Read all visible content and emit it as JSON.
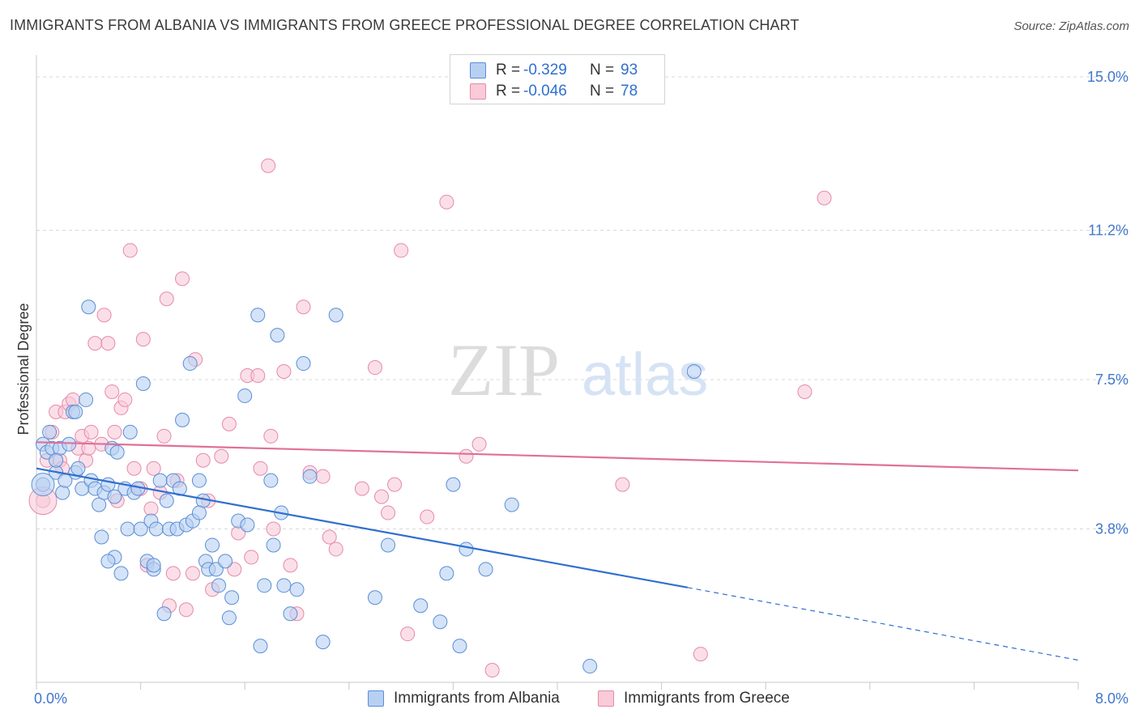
{
  "header": {
    "title": "IMMIGRANTS FROM ALBANIA VS IMMIGRANTS FROM GREECE PROFESSIONAL DEGREE CORRELATION CHART",
    "source": "Source: ZipAtlas.com"
  },
  "watermark": {
    "zip": "ZIP",
    "atlas": "atlas"
  },
  "legend": {
    "albania": {
      "r_label": "R =",
      "r_value": "-0.329",
      "n_label": "N =",
      "n_value": "93"
    },
    "greece": {
      "r_label": "R =",
      "r_value": "-0.046",
      "n_label": "N =",
      "n_value": "78"
    }
  },
  "colors": {
    "albania_fill": "#b7d0f2",
    "albania_stroke": "#5b8ed6",
    "albania_line": "#2f6fd0",
    "greece_fill": "#f9cad8",
    "greece_stroke": "#e68aa7",
    "greece_line": "#e0709a",
    "grid": "#d9d9d9",
    "axis_text": "#3f77cc"
  },
  "chart_data": {
    "type": "scatter",
    "title": "IMMIGRANTS FROM ALBANIA VS IMMIGRANTS FROM GREECE PROFESSIONAL DEGREE CORRELATION CHART",
    "xlabel": "",
    "ylabel": "Professional Degree",
    "xlim": [
      0,
      8.0
    ],
    "ylim": [
      0,
      15.0
    ],
    "x_tick_labels": [
      "0.0%",
      "8.0%"
    ],
    "y_ticks": [
      3.8,
      7.5,
      11.2,
      15.0
    ],
    "y_tick_labels": [
      "3.8%",
      "7.5%",
      "11.2%",
      "15.0%"
    ],
    "grid": true,
    "legend_position": "top-center",
    "series": [
      {
        "name": "Immigrants from Albania",
        "r": -0.329,
        "n": 93,
        "trend": {
          "x0": 0,
          "y0": 5.3,
          "x1": 5.0,
          "y1": 2.35,
          "dashed_to_x": 8.0,
          "dashed_to_y": 0.55
        },
        "points": [
          [
            0.05,
            4.9
          ],
          [
            0.05,
            5.9
          ],
          [
            0.08,
            5.7
          ],
          [
            0.1,
            6.2
          ],
          [
            0.12,
            5.8
          ],
          [
            0.15,
            5.2
          ],
          [
            0.18,
            5.8
          ],
          [
            0.2,
            4.7
          ],
          [
            0.22,
            5.0
          ],
          [
            0.25,
            5.9
          ],
          [
            0.28,
            6.7
          ],
          [
            0.3,
            5.2
          ],
          [
            0.32,
            5.3
          ],
          [
            0.35,
            4.8
          ],
          [
            0.38,
            7.0
          ],
          [
            0.4,
            9.3
          ],
          [
            0.42,
            5.0
          ],
          [
            0.45,
            4.8
          ],
          [
            0.48,
            4.4
          ],
          [
            0.5,
            3.6
          ],
          [
            0.52,
            4.7
          ],
          [
            0.55,
            4.9
          ],
          [
            0.58,
            5.8
          ],
          [
            0.6,
            3.1
          ],
          [
            0.62,
            5.7
          ],
          [
            0.65,
            2.7
          ],
          [
            0.68,
            4.8
          ],
          [
            0.7,
            3.8
          ],
          [
            0.72,
            6.2
          ],
          [
            0.75,
            4.7
          ],
          [
            0.78,
            4.8
          ],
          [
            0.8,
            3.8
          ],
          [
            0.82,
            7.4
          ],
          [
            0.85,
            3.0
          ],
          [
            0.88,
            4.0
          ],
          [
            0.9,
            2.8
          ],
          [
            0.92,
            3.8
          ],
          [
            0.95,
            5.0
          ],
          [
            0.98,
            1.7
          ],
          [
            1.0,
            4.5
          ],
          [
            1.02,
            3.8
          ],
          [
            1.05,
            5.0
          ],
          [
            1.08,
            3.8
          ],
          [
            1.1,
            4.8
          ],
          [
            1.12,
            6.5
          ],
          [
            1.15,
            3.9
          ],
          [
            1.18,
            7.9
          ],
          [
            1.2,
            4.0
          ],
          [
            1.25,
            5.0
          ],
          [
            1.28,
            4.5
          ],
          [
            1.3,
            3.0
          ],
          [
            1.32,
            2.8
          ],
          [
            1.35,
            3.4
          ],
          [
            1.38,
            2.8
          ],
          [
            1.4,
            2.4
          ],
          [
            1.45,
            3.0
          ],
          [
            1.48,
            1.6
          ],
          [
            1.5,
            2.1
          ],
          [
            1.55,
            4.0
          ],
          [
            1.6,
            7.1
          ],
          [
            1.62,
            3.9
          ],
          [
            1.7,
            9.1
          ],
          [
            1.72,
            0.9
          ],
          [
            1.75,
            2.4
          ],
          [
            1.8,
            5.0
          ],
          [
            1.82,
            3.4
          ],
          [
            1.85,
            8.6
          ],
          [
            1.88,
            4.2
          ],
          [
            1.9,
            2.4
          ],
          [
            1.95,
            1.7
          ],
          [
            2.0,
            2.3
          ],
          [
            2.05,
            7.9
          ],
          [
            2.1,
            5.1
          ],
          [
            2.2,
            1.0
          ],
          [
            2.3,
            9.1
          ],
          [
            2.6,
            2.1
          ],
          [
            2.7,
            3.4
          ],
          [
            2.95,
            1.9
          ],
          [
            3.1,
            1.5
          ],
          [
            3.15,
            2.7
          ],
          [
            3.2,
            4.9
          ],
          [
            3.25,
            0.9
          ],
          [
            3.3,
            3.3
          ],
          [
            3.45,
            2.8
          ],
          [
            3.65,
            4.4
          ],
          [
            4.25,
            0.4
          ],
          [
            5.05,
            7.7
          ],
          [
            0.55,
            3.0
          ],
          [
            0.9,
            2.9
          ],
          [
            1.25,
            4.2
          ],
          [
            0.3,
            6.7
          ],
          [
            0.15,
            5.5
          ],
          [
            0.6,
            4.6
          ]
        ]
      },
      {
        "name": "Immigrants from Greece",
        "r": -0.046,
        "n": 78,
        "trend": {
          "x0": 0,
          "y0": 5.95,
          "x1": 8.0,
          "y1": 5.25
        },
        "points": [
          [
            0.05,
            4.5
          ],
          [
            0.08,
            5.5
          ],
          [
            0.12,
            6.2
          ],
          [
            0.15,
            6.7
          ],
          [
            0.18,
            5.5
          ],
          [
            0.2,
            5.3
          ],
          [
            0.22,
            6.7
          ],
          [
            0.25,
            6.9
          ],
          [
            0.28,
            7.0
          ],
          [
            0.32,
            5.8
          ],
          [
            0.35,
            6.1
          ],
          [
            0.38,
            5.5
          ],
          [
            0.4,
            5.8
          ],
          [
            0.42,
            6.2
          ],
          [
            0.45,
            8.4
          ],
          [
            0.5,
            5.9
          ],
          [
            0.52,
            9.1
          ],
          [
            0.55,
            8.4
          ],
          [
            0.58,
            7.2
          ],
          [
            0.6,
            6.2
          ],
          [
            0.62,
            4.5
          ],
          [
            0.65,
            6.8
          ],
          [
            0.68,
            7.0
          ],
          [
            0.72,
            10.7
          ],
          [
            0.75,
            5.3
          ],
          [
            0.8,
            4.8
          ],
          [
            0.82,
            8.5
          ],
          [
            0.85,
            2.9
          ],
          [
            0.88,
            4.3
          ],
          [
            0.9,
            5.3
          ],
          [
            0.95,
            4.7
          ],
          [
            0.98,
            6.1
          ],
          [
            1.0,
            9.5
          ],
          [
            1.02,
            1.9
          ],
          [
            1.05,
            2.7
          ],
          [
            1.08,
            5.0
          ],
          [
            1.12,
            10.0
          ],
          [
            1.15,
            1.8
          ],
          [
            1.2,
            2.7
          ],
          [
            1.22,
            8.0
          ],
          [
            1.28,
            5.5
          ],
          [
            1.32,
            4.5
          ],
          [
            1.35,
            2.3
          ],
          [
            1.42,
            5.6
          ],
          [
            1.48,
            6.4
          ],
          [
            1.52,
            2.8
          ],
          [
            1.55,
            3.7
          ],
          [
            1.62,
            7.6
          ],
          [
            1.65,
            3.1
          ],
          [
            1.7,
            7.6
          ],
          [
            1.72,
            5.3
          ],
          [
            1.8,
            6.1
          ],
          [
            1.82,
            3.8
          ],
          [
            1.9,
            7.7
          ],
          [
            1.95,
            2.9
          ],
          [
            2.0,
            1.7
          ],
          [
            2.05,
            9.3
          ],
          [
            2.1,
            5.2
          ],
          [
            2.2,
            5.1
          ],
          [
            2.25,
            3.6
          ],
          [
            2.3,
            3.3
          ],
          [
            2.5,
            4.8
          ],
          [
            2.6,
            7.8
          ],
          [
            2.65,
            4.6
          ],
          [
            2.7,
            4.2
          ],
          [
            2.75,
            4.9
          ],
          [
            2.8,
            10.7
          ],
          [
            2.85,
            1.2
          ],
          [
            3.0,
            4.1
          ],
          [
            3.15,
            11.9
          ],
          [
            3.3,
            5.6
          ],
          [
            3.4,
            5.9
          ],
          [
            3.5,
            0.3
          ],
          [
            4.5,
            4.9
          ],
          [
            5.1,
            0.7
          ],
          [
            5.9,
            7.2
          ],
          [
            6.05,
            12.0
          ],
          [
            1.78,
            12.8
          ]
        ]
      }
    ]
  },
  "bottom_legend": {
    "albania": "Immigrants from Albania",
    "greece": "Immigrants from Greece"
  }
}
